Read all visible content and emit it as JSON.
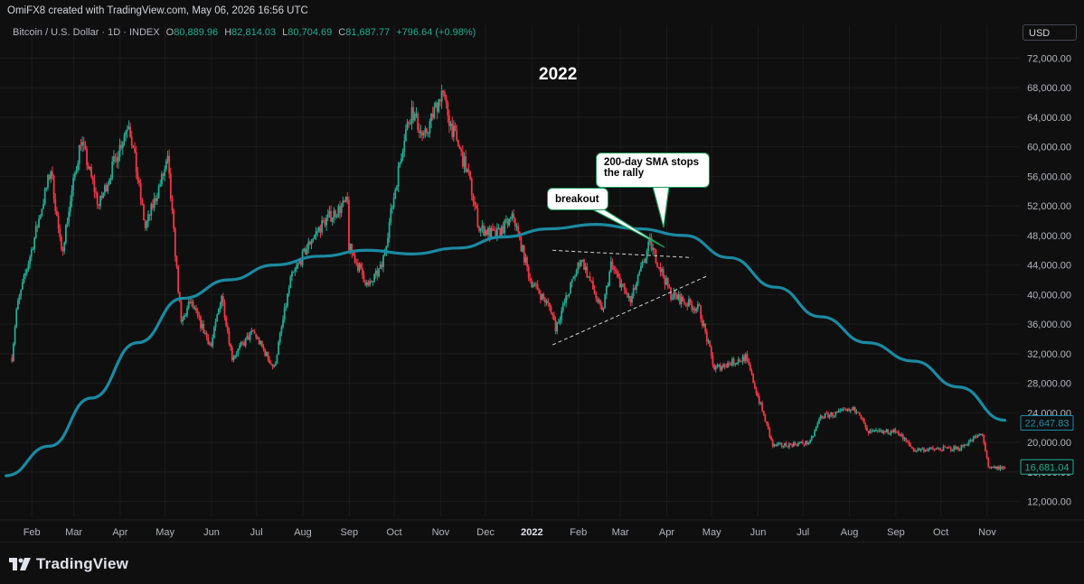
{
  "header": {
    "credit": "OmiFX8 created with TradingView.com, May 06, 2026 16:56 UTC",
    "symbol": "Bitcoin / U.S. Dollar · 1D · INDEX",
    "open_label": "O",
    "open": "80,889.96",
    "high_label": "H",
    "high": "82,814.03",
    "low_label": "L",
    "low": "80,704.69",
    "close_label": "C",
    "close": "81,687.77",
    "change": "+796.64 (+0.98%)",
    "currency_button": "USD"
  },
  "annotations": {
    "year_label": "2022",
    "breakout": "breakout",
    "sma_note_line1": "200-day SMA stops",
    "sma_note_line2": "the rally"
  },
  "footer": {
    "brand": "TradingView"
  },
  "colors": {
    "up": "#22ab94",
    "down": "#f23645",
    "sma": "#1b8aa3",
    "background": "#0f0f0f",
    "grid": "#1c1c1c"
  },
  "chart_data": {
    "type": "candlestick",
    "title": "Bitcoin / U.S. Dollar · 1D · INDEX",
    "ylim": [
      10000,
      74000
    ],
    "y_ticks": [
      "12,000.00",
      "16,000.00",
      "20,000.00",
      "24,000.00",
      "28,000.00",
      "32,000.00",
      "36,000.00",
      "40,000.00",
      "44,000.00",
      "48,000.00",
      "52,000.00",
      "56,000.00",
      "60,000.00",
      "64,000.00",
      "68,000.00",
      "72,000.00"
    ],
    "x_ticks": [
      "Feb",
      "Mar",
      "Apr",
      "May",
      "Jun",
      "Jul",
      "Aug",
      "Sep",
      "Oct",
      "Nov",
      "Dec",
      "2022",
      "Feb",
      "Mar",
      "Apr",
      "May",
      "Jun",
      "Jul",
      "Aug",
      "Sep",
      "Oct",
      "Nov"
    ],
    "price_path": [
      {
        "date": "2021-01-26",
        "price": 31500
      },
      {
        "date": "2021-01-29",
        "price": 38000
      },
      {
        "date": "2021-02-08",
        "price": 46000
      },
      {
        "date": "2021-02-21",
        "price": 57000
      },
      {
        "date": "2021-02-28",
        "price": 45500
      },
      {
        "date": "2021-03-13",
        "price": 61000
      },
      {
        "date": "2021-03-25",
        "price": 52000
      },
      {
        "date": "2021-04-14",
        "price": 63500
      },
      {
        "date": "2021-04-25",
        "price": 49000
      },
      {
        "date": "2021-05-10",
        "price": 58000
      },
      {
        "date": "2021-05-19",
        "price": 36000
      },
      {
        "date": "2021-05-25",
        "price": 39000
      },
      {
        "date": "2021-06-08",
        "price": 33000
      },
      {
        "date": "2021-06-15",
        "price": 40000
      },
      {
        "date": "2021-06-22",
        "price": 31500
      },
      {
        "date": "2021-07-06",
        "price": 35000
      },
      {
        "date": "2021-07-20",
        "price": 30000
      },
      {
        "date": "2021-07-31",
        "price": 42000
      },
      {
        "date": "2021-08-14",
        "price": 47500
      },
      {
        "date": "2021-08-23",
        "price": 50000
      },
      {
        "date": "2021-09-07",
        "price": 52500
      },
      {
        "date": "2021-09-08",
        "price": 46500
      },
      {
        "date": "2021-09-21",
        "price": 41000
      },
      {
        "date": "2021-09-30",
        "price": 43800
      },
      {
        "date": "2021-10-15",
        "price": 61500
      },
      {
        "date": "2021-10-20",
        "price": 65000
      },
      {
        "date": "2021-10-28",
        "price": 61000
      },
      {
        "date": "2021-11-09",
        "price": 67500
      },
      {
        "date": "2021-11-15",
        "price": 63000
      },
      {
        "date": "2021-11-27",
        "price": 56000
      },
      {
        "date": "2021-12-04",
        "price": 49000
      },
      {
        "date": "2021-12-15",
        "price": 48000
      },
      {
        "date": "2021-12-27",
        "price": 50500
      },
      {
        "date": "2022-01-07",
        "price": 42000
      },
      {
        "date": "2022-01-21",
        "price": 38000
      },
      {
        "date": "2022-01-24",
        "price": 35500
      },
      {
        "date": "2022-02-10",
        "price": 45000
      },
      {
        "date": "2022-02-24",
        "price": 37500
      },
      {
        "date": "2022-03-02",
        "price": 44000
      },
      {
        "date": "2022-03-15",
        "price": 39000
      },
      {
        "date": "2022-03-28",
        "price": 47000
      },
      {
        "date": "2022-04-11",
        "price": 40000
      },
      {
        "date": "2022-04-30",
        "price": 38000
      },
      {
        "date": "2022-05-10",
        "price": 30000
      },
      {
        "date": "2022-05-31",
        "price": 31500
      },
      {
        "date": "2022-06-13",
        "price": 23000
      },
      {
        "date": "2022-06-18",
        "price": 19500
      },
      {
        "date": "2022-07-13",
        "price": 20000
      },
      {
        "date": "2022-07-20",
        "price": 23500
      },
      {
        "date": "2022-08-14",
        "price": 24500
      },
      {
        "date": "2022-08-20",
        "price": 21300
      },
      {
        "date": "2022-09-09",
        "price": 21500
      },
      {
        "date": "2022-09-20",
        "price": 19000
      },
      {
        "date": "2022-10-20",
        "price": 19200
      },
      {
        "date": "2022-11-05",
        "price": 21200
      },
      {
        "date": "2022-11-09",
        "price": 16500
      },
      {
        "date": "2022-11-20",
        "price": 16600
      }
    ],
    "series": [
      {
        "name": "200-day SMA",
        "points": [
          {
            "date": "2021-01-22",
            "value": 15500
          },
          {
            "date": "2021-02-20",
            "value": 19500
          },
          {
            "date": "2021-03-20",
            "value": 26000
          },
          {
            "date": "2021-04-20",
            "value": 33500
          },
          {
            "date": "2021-05-20",
            "value": 39500
          },
          {
            "date": "2021-06-20",
            "value": 42000
          },
          {
            "date": "2021-07-20",
            "value": 44000
          },
          {
            "date": "2021-08-20",
            "value": 45200
          },
          {
            "date": "2021-09-20",
            "value": 46000
          },
          {
            "date": "2021-10-20",
            "value": 45500
          },
          {
            "date": "2021-11-20",
            "value": 46300
          },
          {
            "date": "2021-12-20",
            "value": 47800
          },
          {
            "date": "2022-01-20",
            "value": 48900
          },
          {
            "date": "2022-02-20",
            "value": 49500
          },
          {
            "date": "2022-03-20",
            "value": 48900
          },
          {
            "date": "2022-04-20",
            "value": 48000
          },
          {
            "date": "2022-05-20",
            "value": 45000
          },
          {
            "date": "2022-06-20",
            "value": 41000
          },
          {
            "date": "2022-07-20",
            "value": 37000
          },
          {
            "date": "2022-08-20",
            "value": 33500
          },
          {
            "date": "2022-09-20",
            "value": 31000
          },
          {
            "date": "2022-10-20",
            "value": 27500
          },
          {
            "date": "2022-11-20",
            "value": 23000
          }
        ]
      }
    ],
    "price_labels": [
      {
        "text": "22,647.83",
        "value": 22647.83,
        "color": "#1b8aa3"
      },
      {
        "text": "16,681.04",
        "value": 16681.04,
        "color": "#22ab94"
      }
    ],
    "trendlines": [
      {
        "from": {
          "date": "2022-01-22",
          "value": 46000
        },
        "to": {
          "date": "2022-04-25",
          "value": 45000
        }
      },
      {
        "from": {
          "date": "2022-01-22",
          "value": 33200
        },
        "to": {
          "date": "2022-05-05",
          "value": 42500
        }
      }
    ]
  }
}
